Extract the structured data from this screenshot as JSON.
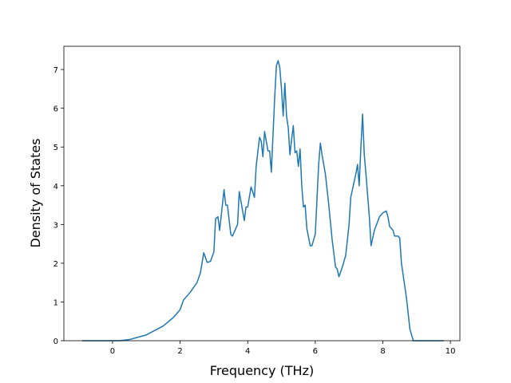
{
  "chart_data": {
    "type": "line",
    "x_label": "Frequency (THz)",
    "y_label": "Density of States",
    "x": [
      -0.9,
      0.2,
      0.5,
      1.0,
      1.5,
      1.8,
      2.0,
      2.1,
      2.3,
      2.5,
      2.6,
      2.7,
      2.8,
      2.9,
      3.0,
      3.05,
      3.12,
      3.17,
      3.3,
      3.35,
      3.4,
      3.5,
      3.55,
      3.7,
      3.75,
      3.9,
      3.95,
      4.0,
      4.1,
      4.2,
      4.25,
      4.35,
      4.4,
      4.45,
      4.5,
      4.6,
      4.65,
      4.7,
      4.8,
      4.85,
      4.9,
      4.95,
      5.0,
      5.05,
      5.1,
      5.15,
      5.2,
      5.25,
      5.3,
      5.35,
      5.4,
      5.45,
      5.5,
      5.55,
      5.6,
      5.65,
      5.7,
      5.75,
      5.85,
      5.9,
      6.0,
      6.1,
      6.15,
      6.2,
      6.3,
      6.4,
      6.5,
      6.6,
      6.65,
      6.7,
      6.8,
      6.9,
      7.0,
      7.05,
      7.2,
      7.25,
      7.3,
      7.35,
      7.4,
      7.45,
      7.5,
      7.6,
      7.65,
      7.75,
      7.9,
      8.0,
      8.1,
      8.15,
      8.2,
      8.3,
      8.35,
      8.45,
      8.5,
      8.55,
      8.7,
      8.8,
      8.9,
      9.8
    ],
    "values": [
      0,
      0,
      0.03,
      0.15,
      0.38,
      0.6,
      0.8,
      1.05,
      1.25,
      1.5,
      1.75,
      2.27,
      2.02,
      2.05,
      2.3,
      3.15,
      3.2,
      2.85,
      3.9,
      3.5,
      3.5,
      2.75,
      2.7,
      3.0,
      3.85,
      3.1,
      3.45,
      3.45,
      3.97,
      3.7,
      4.5,
      5.25,
      5.15,
      4.75,
      5.4,
      4.9,
      4.9,
      4.35,
      6.3,
      7.1,
      7.23,
      7.05,
      6.5,
      5.8,
      6.65,
      5.8,
      5.5,
      4.8,
      5.2,
      5.55,
      4.85,
      4.9,
      4.5,
      4.95,
      4.0,
      3.45,
      3.5,
      2.9,
      2.45,
      2.45,
      2.75,
      4.55,
      5.1,
      4.8,
      4.3,
      3.5,
      2.6,
      1.9,
      1.85,
      1.65,
      1.9,
      2.2,
      3.0,
      3.7,
      4.3,
      4.55,
      4.0,
      5.0,
      5.85,
      4.8,
      4.3,
      3.2,
      2.45,
      2.85,
      3.2,
      3.3,
      3.35,
      3.2,
      2.95,
      2.85,
      2.7,
      2.7,
      2.65,
      2.0,
      1.1,
      0.3,
      0,
      0
    ],
    "color": "#1f77b4",
    "xlim": [
      -1.44,
      10.28
    ],
    "ylim": [
      0,
      7.6
    ],
    "xticks": [
      0,
      2,
      4,
      6,
      8,
      10
    ],
    "yticks": [
      0,
      1,
      2,
      3,
      4,
      5,
      6,
      7
    ]
  }
}
